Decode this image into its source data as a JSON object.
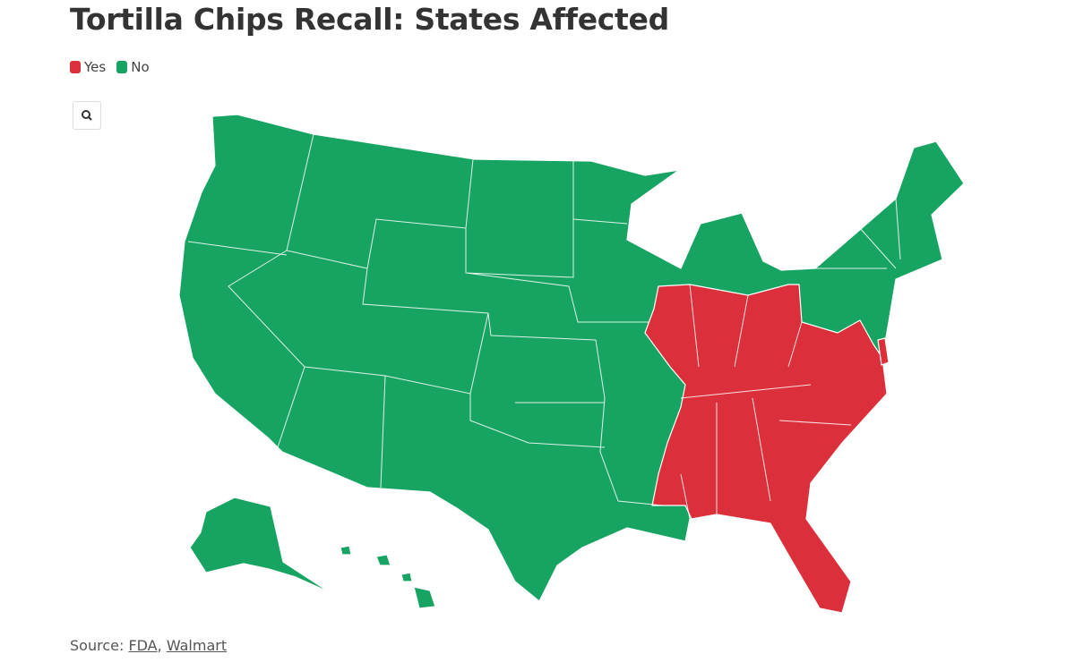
{
  "header": {
    "title": "Tortilla Chips Recall: States Affected"
  },
  "legend": [
    {
      "label": "Yes",
      "color": "#db2f3b"
    },
    {
      "label": "No",
      "color": "#17a462"
    }
  ],
  "footer": {
    "label": "Source:",
    "sources": [
      "FDA",
      "Walmart"
    ],
    "separator": ","
  }
}
